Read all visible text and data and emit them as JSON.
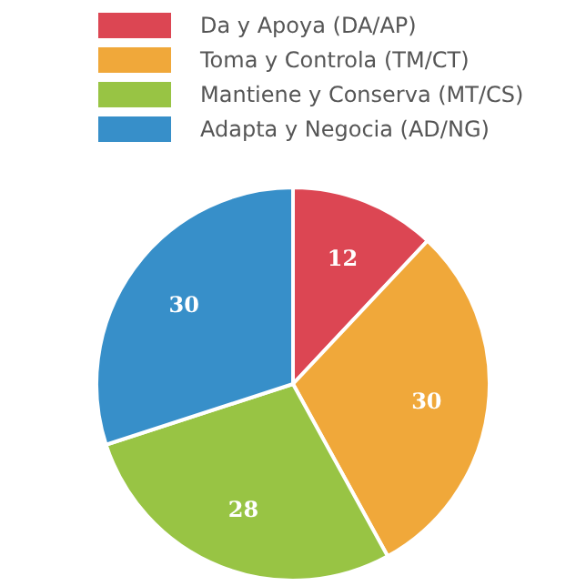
{
  "chart_data": {
    "type": "pie",
    "categories": [
      "Da y Apoya (DA/AP)",
      "Toma y Controla (TM/CT)",
      "Mantiene y Conserva (MT/CS)",
      "Adapta y Negocia (AD/NG)"
    ],
    "values": [
      12,
      30,
      28,
      30
    ],
    "colors": [
      "#dc4653",
      "#f0a83a",
      "#98c444",
      "#378fc9"
    ],
    "data_labels": true,
    "legend": "top"
  }
}
